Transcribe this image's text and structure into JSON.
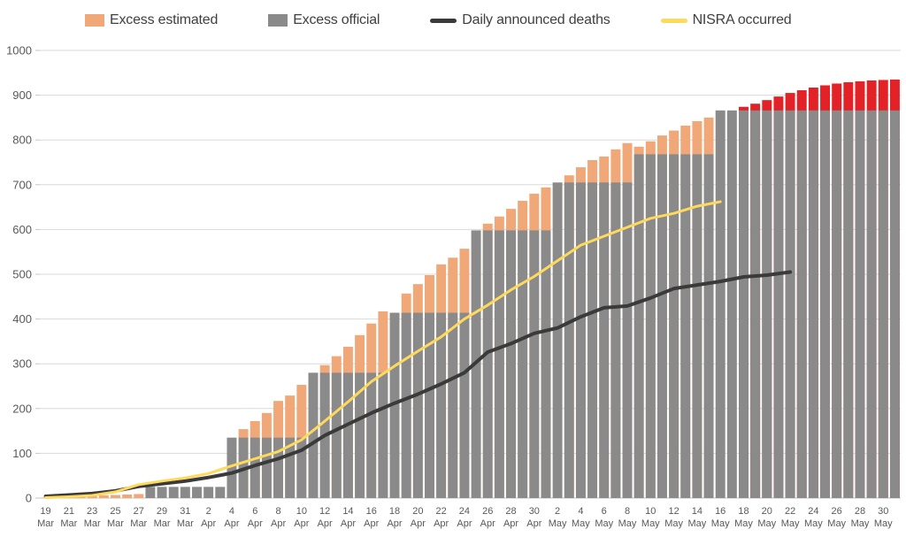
{
  "chart_data": {
    "type": "bar",
    "subtype": "cumulative daily bars (19 Mar - 31 May) with weekly-step official bars, plus two cumulative lines",
    "title": "",
    "xlabel": "",
    "ylabel": "",
    "y_axis": {
      "min": 0,
      "max": 1000,
      "step": 100,
      "ticks": [
        0,
        100,
        200,
        300,
        400,
        500,
        600,
        700,
        800,
        900,
        1000
      ]
    },
    "x_tick_labels": [
      {
        "day": "19",
        "month": "Mar"
      },
      {
        "day": "21",
        "month": "Mar"
      },
      {
        "day": "23",
        "month": "Mar"
      },
      {
        "day": "25",
        "month": "Mar"
      },
      {
        "day": "27",
        "month": "Mar"
      },
      {
        "day": "29",
        "month": "Mar"
      },
      {
        "day": "31",
        "month": "Mar"
      },
      {
        "day": "2",
        "month": "Apr"
      },
      {
        "day": "4",
        "month": "Apr"
      },
      {
        "day": "6",
        "month": "Apr"
      },
      {
        "day": "8",
        "month": "Apr"
      },
      {
        "day": "10",
        "month": "Apr"
      },
      {
        "day": "12",
        "month": "Apr"
      },
      {
        "day": "14",
        "month": "Apr"
      },
      {
        "day": "16",
        "month": "Apr"
      },
      {
        "day": "18",
        "month": "Apr"
      },
      {
        "day": "20",
        "month": "Apr"
      },
      {
        "day": "22",
        "month": "Apr"
      },
      {
        "day": "24",
        "month": "Apr"
      },
      {
        "day": "26",
        "month": "Apr"
      },
      {
        "day": "28",
        "month": "Apr"
      },
      {
        "day": "30",
        "month": "Apr"
      },
      {
        "day": "2",
        "month": "May"
      },
      {
        "day": "4",
        "month": "May"
      },
      {
        "day": "6",
        "month": "May"
      },
      {
        "day": "8",
        "month": "May"
      },
      {
        "day": "10",
        "month": "May"
      },
      {
        "day": "12",
        "month": "May"
      },
      {
        "day": "14",
        "month": "May"
      },
      {
        "day": "16",
        "month": "May"
      },
      {
        "day": "18",
        "month": "May"
      },
      {
        "day": "20",
        "month": "May"
      },
      {
        "day": "22",
        "month": "May"
      },
      {
        "day": "24",
        "month": "May"
      },
      {
        "day": "26",
        "month": "May"
      },
      {
        "day": "28",
        "month": "May"
      },
      {
        "day": "30",
        "month": "May"
      }
    ],
    "x_tick_every_days": 2,
    "legend": [
      {
        "label": "Excess estimated",
        "swatch": "rect",
        "color": "#F0A878"
      },
      {
        "label": "Excess official",
        "swatch": "rect",
        "color": "#8A8A8A"
      },
      {
        "label": "Daily announced deaths",
        "swatch": "line",
        "color": "#3A3A3A"
      },
      {
        "label": "NISRA occurred",
        "swatch": "line",
        "color": "#FFD95C"
      }
    ],
    "series": [
      {
        "name": "Excess estimated",
        "type": "bar-total",
        "color": "#F0A878",
        "red_color": "#E32227",
        "red_from_index": 60,
        "values": [
          1,
          2,
          2,
          3,
          5,
          6,
          7,
          8,
          9,
          25,
          25,
          25,
          25,
          25,
          25,
          25,
          135,
          154,
          172,
          190,
          217,
          229,
          253,
          280,
          297,
          317,
          338,
          364,
          390,
          417,
          414,
          457,
          478,
          498,
          522,
          537,
          557,
          598,
          613,
          629,
          646,
          664,
          680,
          694,
          705,
          721,
          739,
          755,
          763,
          779,
          793,
          785,
          797,
          810,
          821,
          832,
          842,
          850,
          866,
          866,
          874,
          881,
          889,
          897,
          905,
          911,
          917,
          922,
          926,
          929,
          931,
          933,
          934,
          935
        ]
      },
      {
        "name": "Excess official",
        "type": "bar-step",
        "color": "#8A8A8A",
        "values": [
          0,
          0,
          0,
          0,
          0,
          0,
          0,
          0,
          0,
          25,
          25,
          25,
          25,
          25,
          25,
          25,
          135,
          135,
          135,
          135,
          135,
          135,
          135,
          280,
          280,
          280,
          280,
          280,
          280,
          280,
          414,
          414,
          414,
          414,
          414,
          414,
          414,
          598,
          598,
          598,
          598,
          598,
          598,
          598,
          705,
          705,
          705,
          705,
          705,
          705,
          705,
          768,
          768,
          768,
          768,
          768,
          768,
          768,
          866,
          866,
          866,
          866,
          866,
          866,
          866,
          866,
          866,
          866,
          866,
          866,
          866,
          866,
          866,
          866
        ]
      },
      {
        "name": "Daily announced deaths",
        "type": "line",
        "color": "#3A3A3A",
        "point_spacing_days": 2,
        "values": [
          4,
          7,
          10,
          16,
          26,
          32,
          38,
          46,
          56,
          73,
          88,
          107,
          140,
          165,
          190,
          212,
          232,
          255,
          280,
          326,
          345,
          368,
          380,
          405,
          425,
          429,
          447,
          468,
          476,
          484,
          494,
          498,
          505
        ]
      },
      {
        "name": "NISRA occurred",
        "type": "line",
        "color": "#FFD95C",
        "point_spacing_days": 2,
        "values": [
          1,
          3,
          6,
          14,
          30,
          38,
          45,
          55,
          72,
          88,
          104,
          130,
          172,
          215,
          260,
          295,
          328,
          360,
          400,
          431,
          465,
          495,
          530,
          565,
          585,
          605,
          625,
          636,
          652,
          662
        ]
      }
    ],
    "colors": {
      "gridline": "#D9D9D9",
      "axis_line": "#C6C6C6",
      "axis_text": "#595959"
    },
    "grid": "horizontal",
    "legend_position": "top"
  }
}
